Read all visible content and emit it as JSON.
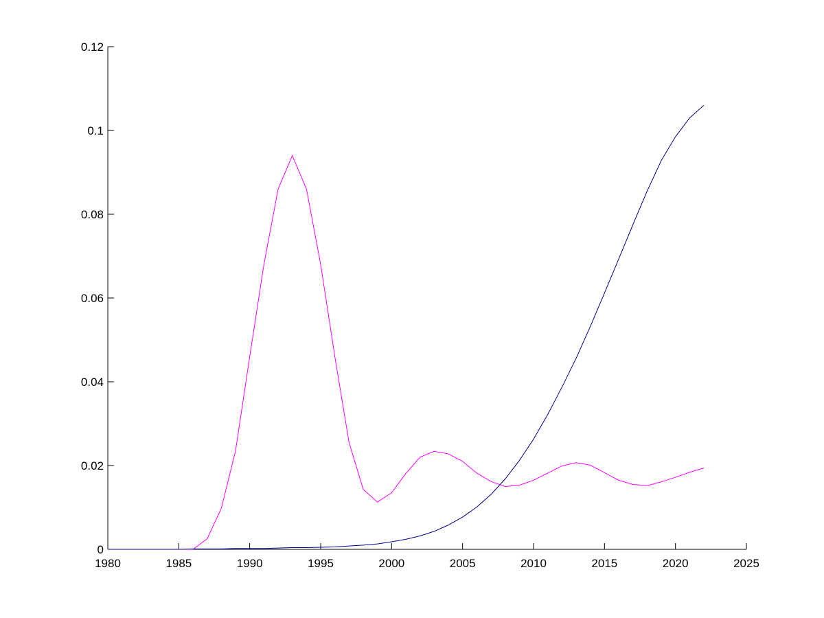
{
  "chart_data": {
    "type": "line",
    "title": "",
    "xlabel": "",
    "ylabel": "",
    "xlim": [
      1980,
      2025
    ],
    "ylim": [
      0,
      0.12
    ],
    "x_ticks": [
      1980,
      1985,
      1990,
      1995,
      2000,
      2005,
      2010,
      2015,
      2020,
      2025
    ],
    "y_ticks": [
      0,
      0.02,
      0.04,
      0.06,
      0.08,
      0.1,
      0.12
    ],
    "x_tick_labels": [
      "1980",
      "1985",
      "1990",
      "1995",
      "2000",
      "2005",
      "2010",
      "2015",
      "2020",
      "2025"
    ],
    "y_tick_labels": [
      "0",
      "0.02",
      "0.04",
      "0.06",
      "0.08",
      "0.1",
      "0.12"
    ],
    "grid": false,
    "legend": "none",
    "series": [
      {
        "color": "#ff00ff",
        "x": [
          1980,
          1981,
          1982,
          1983,
          1984,
          1985,
          1986,
          1987,
          1988,
          1989,
          1990,
          1991,
          1992,
          1993,
          1994,
          1995,
          1996,
          1997,
          1998,
          1999,
          2000,
          2001,
          2002,
          2003,
          2004,
          2005,
          2006,
          2007,
          2008,
          2009,
          2010,
          2011,
          2012,
          2013,
          2014,
          2015,
          2016,
          2017,
          2018,
          2019,
          2020,
          2021,
          2022
        ],
        "values": [
          0,
          0,
          0,
          0,
          0,
          0,
          0,
          0.0025,
          0.0098,
          0.0235,
          0.046,
          0.068,
          0.086,
          0.094,
          0.086,
          0.068,
          0.046,
          0.0255,
          0.0143,
          0.0113,
          0.0135,
          0.0181,
          0.022,
          0.0234,
          0.0228,
          0.021,
          0.0182,
          0.0162,
          0.015,
          0.0153,
          0.0165,
          0.0182,
          0.0199,
          0.0207,
          0.0201,
          0.0183,
          0.0165,
          0.0155,
          0.0152,
          0.0161,
          0.0172,
          0.0184,
          0.0194
        ]
      },
      {
        "color": "#00008b",
        "x": [
          1980,
          1981,
          1982,
          1983,
          1984,
          1985,
          1986,
          1987,
          1988,
          1989,
          1990,
          1991,
          1992,
          1993,
          1994,
          1995,
          1996,
          1997,
          1998,
          1999,
          2000,
          2001,
          2002,
          2003,
          2004,
          2005,
          2006,
          2007,
          2008,
          2009,
          2010,
          2011,
          2012,
          2013,
          2014,
          2015,
          2016,
          2017,
          2018,
          2019,
          2020,
          2021,
          2022
        ],
        "values": [
          0,
          0,
          0,
          0,
          0,
          0,
          0.0001,
          0.0001,
          0.0001,
          0.0002,
          0.0002,
          0.0002,
          0.0003,
          0.0004,
          0.0004,
          0.0005,
          0.0006,
          0.0008,
          0.001,
          0.0013,
          0.0018,
          0.0024,
          0.0032,
          0.0043,
          0.0058,
          0.0077,
          0.0101,
          0.0131,
          0.0168,
          0.0212,
          0.0263,
          0.0322,
          0.0387,
          0.0456,
          0.0532,
          0.0612,
          0.0693,
          0.0775,
          0.0855,
          0.0928,
          0.0985,
          0.103,
          0.106
        ]
      }
    ]
  }
}
